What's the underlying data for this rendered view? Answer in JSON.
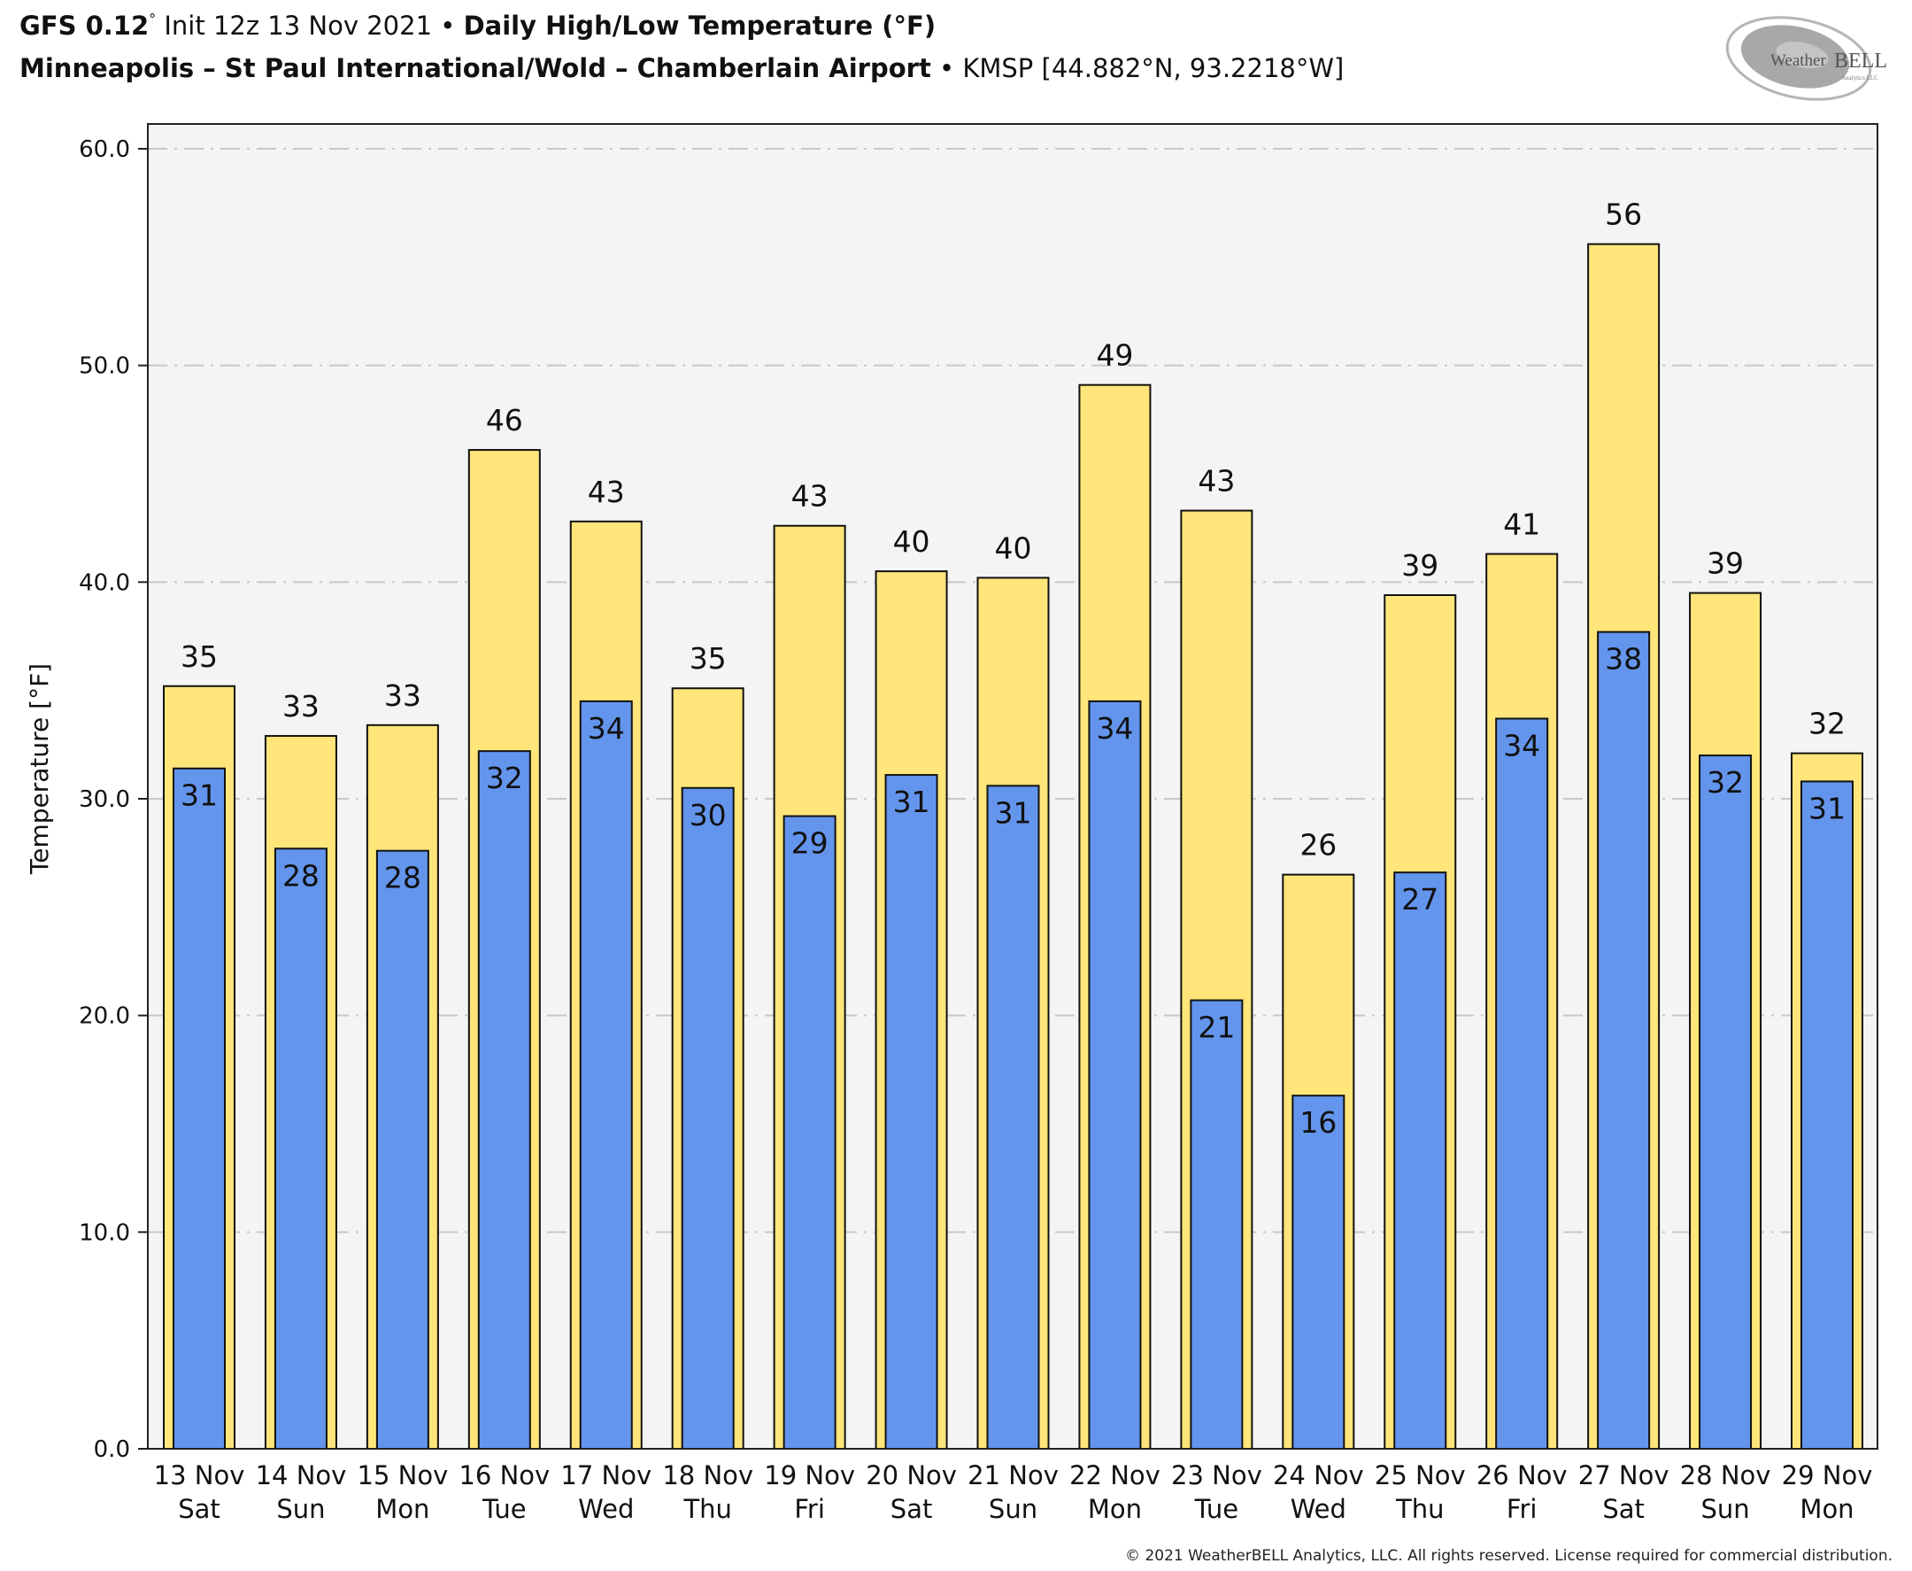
{
  "header": {
    "model": "GFS 0.12",
    "model_degree": "°",
    "init": " Init 12z 13 Nov 2021 • ",
    "product": "Daily High/Low Temperature (°F)",
    "station_name": "Minneapolis – St Paul International/Wold – Chamberlain Airport",
    "station_sep": " • ",
    "station_code": "KMSP [44.882°N, 93.2218°W]"
  },
  "logo": {
    "name": "WeatherBELL",
    "prefix": "Weather",
    "suffix": "BELL",
    "sub": "Analytics LLC"
  },
  "footer": {
    "copyright": "© 2021 WeatherBELL Analytics, LLC. All rights reserved. License required for commercial distribution."
  },
  "chart_data": {
    "type": "bar",
    "title": "Daily High/Low Temperature (°F)",
    "xlabel": "",
    "ylabel": "Temperature [°F]",
    "ylim": [
      0,
      60
    ],
    "yticks": [
      0,
      10,
      20,
      30,
      40,
      50,
      60
    ],
    "ytick_labels": [
      "0.0",
      "10.0",
      "20.0",
      "30.0",
      "40.0",
      "50.0",
      "60.0"
    ],
    "grid": true,
    "grid_style": "dash-dot",
    "legend": "none",
    "categories": [
      {
        "date": "13 Nov",
        "day": "Sat"
      },
      {
        "date": "14 Nov",
        "day": "Sun"
      },
      {
        "date": "15 Nov",
        "day": "Mon"
      },
      {
        "date": "16 Nov",
        "day": "Tue"
      },
      {
        "date": "17 Nov",
        "day": "Wed"
      },
      {
        "date": "18 Nov",
        "day": "Thu"
      },
      {
        "date": "19 Nov",
        "day": "Fri"
      },
      {
        "date": "20 Nov",
        "day": "Sat"
      },
      {
        "date": "21 Nov",
        "day": "Sun"
      },
      {
        "date": "22 Nov",
        "day": "Mon"
      },
      {
        "date": "23 Nov",
        "day": "Tue"
      },
      {
        "date": "24 Nov",
        "day": "Wed"
      },
      {
        "date": "25 Nov",
        "day": "Thu"
      },
      {
        "date": "26 Nov",
        "day": "Fri"
      },
      {
        "date": "27 Nov",
        "day": "Sat"
      },
      {
        "date": "28 Nov",
        "day": "Sun"
      },
      {
        "date": "29 Nov",
        "day": "Mon"
      }
    ],
    "series": [
      {
        "name": "High",
        "color": "#FFE57A",
        "values": [
          35.2,
          32.9,
          33.4,
          46.1,
          42.8,
          35.1,
          42.6,
          40.5,
          40.2,
          49.1,
          43.3,
          26.5,
          39.4,
          41.3,
          55.6,
          39.5,
          32.1
        ],
        "labels": [
          "35",
          "33",
          "33",
          "46",
          "43",
          "35",
          "43",
          "40",
          "40",
          "49",
          "43",
          "26",
          "39",
          "41",
          "56",
          "39",
          "32"
        ]
      },
      {
        "name": "Low",
        "color": "#6495ED",
        "values": [
          31.4,
          27.7,
          27.6,
          32.2,
          34.5,
          30.5,
          29.2,
          31.1,
          30.6,
          34.5,
          20.7,
          16.3,
          26.6,
          33.7,
          37.7,
          32.0,
          30.8
        ],
        "labels": [
          "31",
          "28",
          "28",
          "32",
          "34",
          "30",
          "29",
          "31",
          "31",
          "34",
          "21",
          "16",
          "27",
          "34",
          "38",
          "32",
          "31"
        ]
      }
    ],
    "plot_background": "#F4F4F4"
  }
}
